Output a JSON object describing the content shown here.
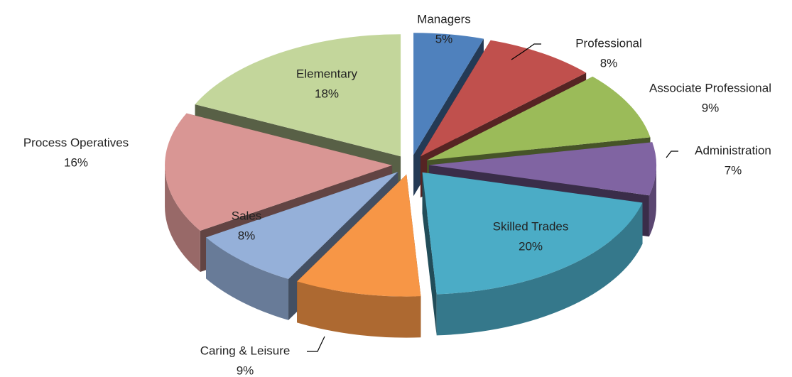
{
  "chart_data": {
    "type": "pie3d",
    "categories": [
      "Managers",
      "Professional",
      "Associate Professional",
      "Administration",
      "Skilled Trades",
      "Caring & Leisure",
      "Sales",
      "Process Operatives",
      "Elementary"
    ],
    "values": [
      5,
      8,
      9,
      7,
      20,
      9,
      8,
      16,
      18
    ],
    "value_labels": [
      "5%",
      "8%",
      "9%",
      "7%",
      "20%",
      "9%",
      "8%",
      "16%",
      "18%"
    ],
    "colors": [
      "#4f81bd",
      "#c0504d",
      "#9bbb59",
      "#8064a2",
      "#4bacc6",
      "#f79646",
      "#95b0d9",
      "#d99694",
      "#c3d69b"
    ]
  }
}
